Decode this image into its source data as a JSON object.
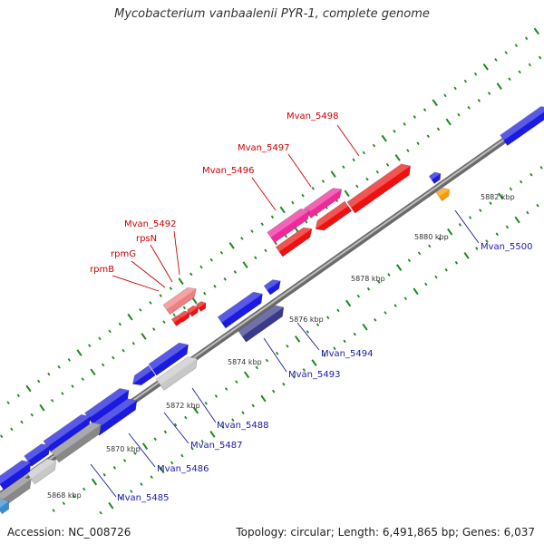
{
  "title": "Mycobacterium vanbaalenii PYR-1, complete genome",
  "footer": {
    "accession": "Accession: NC_008726",
    "summary": "Topology: circular; Length: 6,491,865 bp; Genes: 6,037"
  },
  "colors": {
    "backbone": "#808080",
    "tick": "#1a8a1a",
    "gene_blue": "#1a1ae0",
    "gene_red": "#ee1111",
    "gene_pink": "#ee2a9a",
    "gene_salmon": "#ee8080",
    "gene_navy": "#3a3a8a",
    "gene_orange": "#ff9900",
    "gene_gray": "#888888",
    "gene_lightgray": "#c8c8c8",
    "label_red": "#cc0000",
    "label_blue": "#1a1aa8"
  },
  "kbp_labels": [
    {
      "text": "5868 kbp"
    },
    {
      "text": "5870 kbp"
    },
    {
      "text": "5872 kbp"
    },
    {
      "text": "5874 kbp"
    },
    {
      "text": "5876 kbp"
    },
    {
      "text": "5878 kbp"
    },
    {
      "text": "5880 kbp"
    },
    {
      "text": "5882 kbp"
    }
  ],
  "gene_labels_top": [
    {
      "text": "Mvan_5498"
    },
    {
      "text": "Mvan_5497"
    },
    {
      "text": "Mvan_5496"
    },
    {
      "text": "Mvan_5492"
    },
    {
      "text": "rpsN"
    },
    {
      "text": "rpmG"
    },
    {
      "text": "rpmB"
    }
  ],
  "gene_labels_bottom": [
    {
      "text": "Mvan_5500"
    },
    {
      "text": "Mvan_5494"
    },
    {
      "text": "Mvan_5493"
    },
    {
      "text": "Mvan_5488"
    },
    {
      "text": "Mvan_5487"
    },
    {
      "text": "Mvan_5486"
    },
    {
      "text": "Mvan_5485"
    }
  ]
}
